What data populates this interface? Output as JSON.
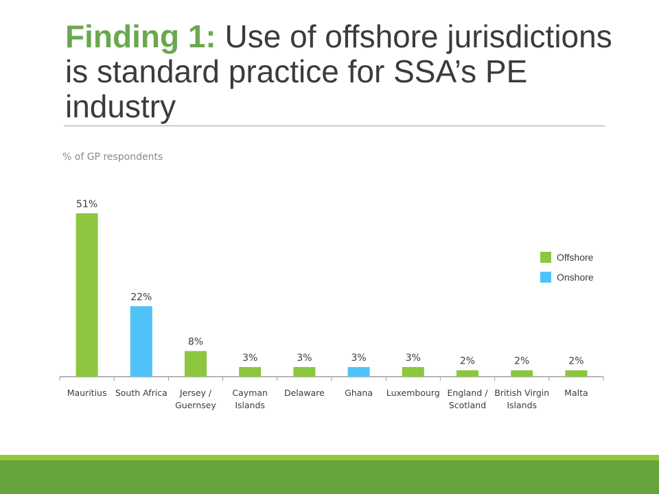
{
  "slide": {
    "title_accent": "Finding 1:",
    "title_rest": " Use of offshore jurisdictions is standard practice for SSA’s PE industry"
  },
  "chart_data": {
    "type": "bar",
    "title": "",
    "xlabel": "",
    "ylabel": "% of GP respondents",
    "ylim": [
      0,
      55
    ],
    "grid": false,
    "legend_position": "right",
    "categories": [
      "Mauritius",
      "South Africa",
      "Jersey / Guernsey",
      "Cayman Islands",
      "Delaware",
      "Ghana",
      "Luxembourg",
      "England / Scotland",
      "British Virgin Islands",
      "Malta"
    ],
    "category_lines": [
      [
        "Mauritius"
      ],
      [
        "South Africa"
      ],
      [
        "Jersey /",
        "Guernsey"
      ],
      [
        "Cayman",
        "Islands"
      ],
      [
        "Delaware"
      ],
      [
        "Ghana"
      ],
      [
        "Luxembourg"
      ],
      [
        "England /",
        "Scotland"
      ],
      [
        "British Virgin",
        "Islands"
      ],
      [
        "Malta"
      ]
    ],
    "values": [
      51,
      22,
      8,
      3,
      3,
      3,
      3,
      2,
      2,
      2
    ],
    "value_labels": [
      "51%",
      "22%",
      "8%",
      "3%",
      "3%",
      "3%",
      "3%",
      "2%",
      "2%",
      "2%"
    ],
    "groups": [
      "Offshore",
      "Onshore",
      "Offshore",
      "Offshore",
      "Offshore",
      "Onshore",
      "Offshore",
      "Offshore",
      "Offshore",
      "Offshore"
    ],
    "legend": [
      {
        "name": "Offshore",
        "color": "#8dc63f"
      },
      {
        "name": "Onshore",
        "color": "#4fc3f7"
      }
    ]
  }
}
